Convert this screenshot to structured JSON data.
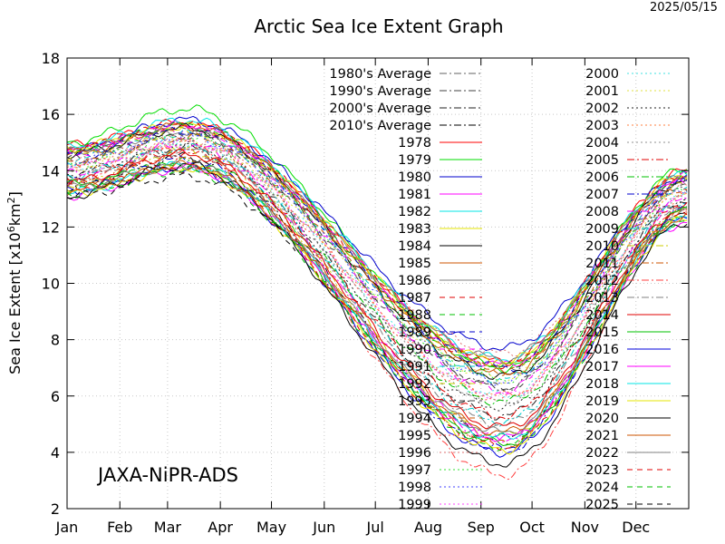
{
  "title": "Arctic Sea Ice Extent Graph",
  "date_stamp": "2025/05/15",
  "credit": "JAXA-NiPR-ADS",
  "chart_data": {
    "type": "line",
    "title": "Arctic Sea Ice Extent Graph",
    "xlabel": "",
    "ylabel_main": "Sea Ice Extent [x10",
    "ylabel_exp1": "6",
    "ylabel_mid": "km",
    "ylabel_exp2": "2",
    "ylabel_end": "]",
    "x_tick_labels": [
      "Jan",
      "Feb",
      "Mar",
      "Apr",
      "May",
      "Jun",
      "Jul",
      "Aug",
      "Sep",
      "Oct",
      "Nov",
      "Dec"
    ],
    "y_ticks": [
      2,
      4,
      6,
      8,
      10,
      12,
      14,
      16,
      18
    ],
    "ylim": [
      2,
      18
    ],
    "xlim_days": [
      1,
      366
    ],
    "grid": true,
    "legend_position": "inside-top-right",
    "series": [
      {
        "name": "1980's Average",
        "color": "#606060",
        "dash": "8,3,2,3",
        "base": 14.7,
        "min": 7.0,
        "max": 15.6
      },
      {
        "name": "1990's Average",
        "color": "#404040",
        "dash": "8,3,2,3",
        "base": 14.3,
        "min": 6.3,
        "max": 15.3
      },
      {
        "name": "2000's Average",
        "color": "#202020",
        "dash": "8,3,2,3",
        "base": 13.9,
        "min": 5.3,
        "max": 14.8
      },
      {
        "name": "2010's Average",
        "color": "#000000",
        "dash": "8,3,2,3",
        "base": 13.4,
        "min": 4.5,
        "max": 14.5
      },
      {
        "name": "1978",
        "color": "#ff0000",
        "dash": "",
        "base": 14.9,
        "min": 7.2,
        "max": 15.7
      },
      {
        "name": "1979",
        "color": "#00dd00",
        "dash": "",
        "base": 15.0,
        "min": 7.0,
        "max": 16.2
      },
      {
        "name": "1980",
        "color": "#0000cc",
        "dash": "",
        "base": 14.7,
        "min": 7.7,
        "max": 15.8
      },
      {
        "name": "1981",
        "color": "#ff00ff",
        "dash": "",
        "base": 14.7,
        "min": 7.1,
        "max": 15.6
      },
      {
        "name": "1982",
        "color": "#00e5e5",
        "dash": "",
        "base": 14.8,
        "min": 7.3,
        "max": 15.8
      },
      {
        "name": "1983",
        "color": "#e5e500",
        "dash": "",
        "base": 14.8,
        "min": 7.2,
        "max": 15.6
      },
      {
        "name": "1984",
        "color": "#000000",
        "dash": "",
        "base": 14.6,
        "min": 6.7,
        "max": 15.5
      },
      {
        "name": "1985",
        "color": "#cc5500",
        "dash": "",
        "base": 14.6,
        "min": 6.8,
        "max": 15.6
      },
      {
        "name": "1986",
        "color": "#808080",
        "dash": "",
        "base": 14.7,
        "min": 7.3,
        "max": 15.4
      },
      {
        "name": "1987",
        "color": "#e00000",
        "dash": "6,5",
        "base": 14.8,
        "min": 7.1,
        "max": 15.6
      },
      {
        "name": "1988",
        "color": "#00c000",
        "dash": "6,5",
        "base": 14.7,
        "min": 7.0,
        "max": 15.6
      },
      {
        "name": "1989",
        "color": "#0000cc",
        "dash": "6,5",
        "base": 14.5,
        "min": 7.0,
        "max": 15.4
      },
      {
        "name": "1990",
        "color": "#ff00ff",
        "dash": "6,5",
        "base": 14.6,
        "min": 6.2,
        "max": 15.5
      },
      {
        "name": "1991",
        "color": "#00cccc",
        "dash": "6,5",
        "base": 14.4,
        "min": 6.6,
        "max": 15.3
      },
      {
        "name": "1992",
        "color": "#cccc00",
        "dash": "6,5",
        "base": 14.5,
        "min": 7.1,
        "max": 15.4
      },
      {
        "name": "1993",
        "color": "#404040",
        "dash": "6,5",
        "base": 14.4,
        "min": 6.3,
        "max": 15.3
      },
      {
        "name": "1994",
        "color": "#cc5500",
        "dash": "6,5",
        "base": 14.3,
        "min": 6.9,
        "max": 15.2
      },
      {
        "name": "1995",
        "color": "#ff4040",
        "dash": "2,3",
        "base": 14.2,
        "min": 5.9,
        "max": 15.0
      },
      {
        "name": "1996",
        "color": "#e07070",
        "dash": "2,3",
        "base": 14.3,
        "min": 7.5,
        "max": 15.1
      },
      {
        "name": "1997",
        "color": "#30e030",
        "dash": "2,3",
        "base": 14.2,
        "min": 6.6,
        "max": 15.2
      },
      {
        "name": "1998",
        "color": "#4040ff",
        "dash": "2,3",
        "base": 14.3,
        "min": 6.5,
        "max": 15.2
      },
      {
        "name": "1999",
        "color": "#ff40ff",
        "dash": "2,3",
        "base": 14.1,
        "min": 6.0,
        "max": 15.0
      },
      {
        "name": "2000",
        "color": "#40e0e0",
        "dash": "2,3",
        "base": 14.0,
        "min": 6.0,
        "max": 14.9
      },
      {
        "name": "2001",
        "color": "#e0e040",
        "dash": "2,3",
        "base": 14.1,
        "min": 6.6,
        "max": 14.9
      },
      {
        "name": "2002",
        "color": "#202020",
        "dash": "2,3",
        "base": 13.9,
        "min": 5.6,
        "max": 14.9
      },
      {
        "name": "2003",
        "color": "#ff8040",
        "dash": "2,3",
        "base": 14.0,
        "min": 6.0,
        "max": 15.0
      },
      {
        "name": "2004",
        "color": "#909090",
        "dash": "2,3",
        "base": 13.9,
        "min": 5.8,
        "max": 14.9
      },
      {
        "name": "2005",
        "color": "#e00000",
        "dash": "8,3,2,3",
        "base": 13.7,
        "min": 5.3,
        "max": 14.6
      },
      {
        "name": "2006",
        "color": "#00c000",
        "dash": "8,3,2,3",
        "base": 13.4,
        "min": 5.8,
        "max": 14.3
      },
      {
        "name": "2007",
        "color": "#0000cc",
        "dash": "8,3,2,3",
        "base": 13.6,
        "min": 4.1,
        "max": 14.4
      },
      {
        "name": "2008",
        "color": "#ff00ff",
        "dash": "8,3,2,3",
        "base": 13.9,
        "min": 4.5,
        "max": 14.9
      },
      {
        "name": "2009",
        "color": "#00cccc",
        "dash": "8,3,2,3",
        "base": 13.8,
        "min": 5.1,
        "max": 14.8
      },
      {
        "name": "2010",
        "color": "#cccc00",
        "dash": "8,3,2,3",
        "base": 13.5,
        "min": 4.6,
        "max": 14.7
      },
      {
        "name": "2011",
        "color": "#cc5500",
        "dash": "8,3,2,3",
        "base": 13.5,
        "min": 4.3,
        "max": 14.5
      },
      {
        "name": "2012",
        "color": "#ff4040",
        "dash": "8,3,2,3",
        "base": 13.6,
        "min": 3.2,
        "max": 14.8
      },
      {
        "name": "2013",
        "color": "#808080",
        "dash": "8,3,2,3",
        "base": 13.7,
        "min": 5.0,
        "max": 14.7
      },
      {
        "name": "2014",
        "color": "#e00000",
        "dash": "",
        "base": 13.6,
        "min": 4.9,
        "max": 14.6
      },
      {
        "name": "2015",
        "color": "#00c000",
        "dash": "",
        "base": 13.5,
        "min": 4.3,
        "max": 14.2
      },
      {
        "name": "2016",
        "color": "#0000dd",
        "dash": "",
        "base": 13.3,
        "min": 4.0,
        "max": 14.1
      },
      {
        "name": "2017",
        "color": "#ff00ff",
        "dash": "",
        "base": 13.1,
        "min": 4.5,
        "max": 14.1
      },
      {
        "name": "2018",
        "color": "#00e5e5",
        "dash": "",
        "base": 13.2,
        "min": 4.5,
        "max": 14.2
      },
      {
        "name": "2019",
        "color": "#e5e500",
        "dash": "",
        "base": 13.2,
        "min": 4.1,
        "max": 14.1
      },
      {
        "name": "2020",
        "color": "#000000",
        "dash": "",
        "base": 13.1,
        "min": 3.6,
        "max": 14.2
      },
      {
        "name": "2021",
        "color": "#cc5500",
        "dash": "",
        "base": 13.3,
        "min": 4.7,
        "max": 14.2
      },
      {
        "name": "2022",
        "color": "#808080",
        "dash": "",
        "base": 13.4,
        "min": 4.7,
        "max": 14.2
      },
      {
        "name": "2023",
        "color": "#e00000",
        "dash": "6,5",
        "base": 13.4,
        "min": 4.2,
        "max": 14.1
      },
      {
        "name": "2024",
        "color": "#00c000",
        "dash": "6,5",
        "base": 13.2,
        "min": 4.2,
        "max": 14.0
      },
      {
        "name": "2025",
        "color": "#000000",
        "dash": "6,5",
        "base": 13.1,
        "min": null,
        "max": 13.8,
        "end_day": 135
      }
    ]
  }
}
